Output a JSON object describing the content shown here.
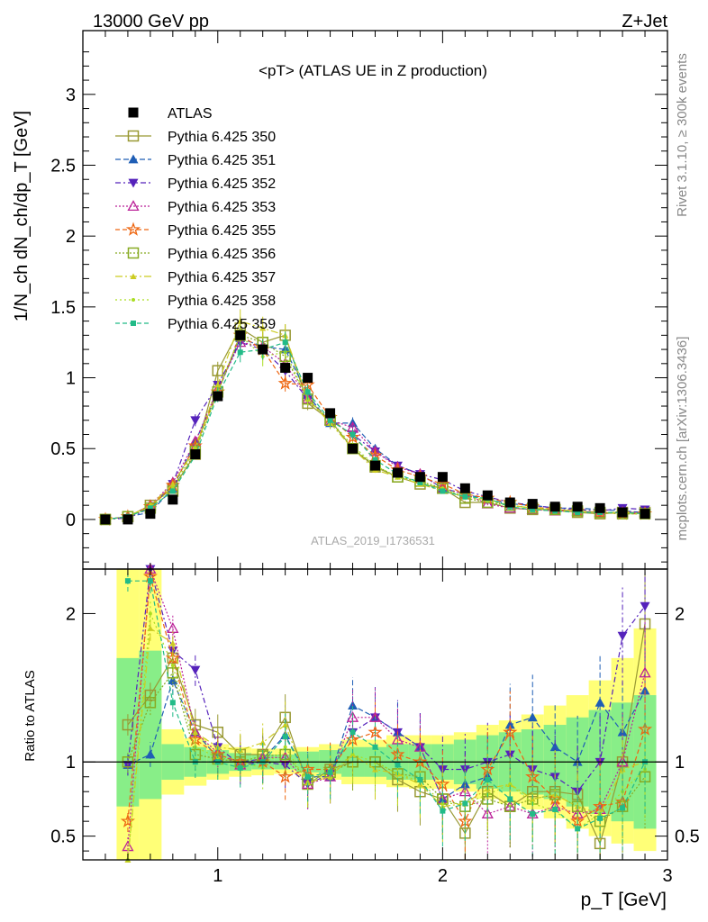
{
  "header": {
    "left": "13000 GeV pp",
    "right": "Z+Jet"
  },
  "side": {
    "rivet": "Rivet 3.1.10, ≥ 300k events",
    "site": "mcplots.cern.ch [arXiv:1306.3436]"
  },
  "chart_data": {
    "type": "scatter",
    "title": "<pT> (ATLAS UE in Z production)",
    "watermark": "ATLAS_2019_I1736531",
    "xlabel": "p_T [GeV]",
    "ylabel": "1/N_ch dN_ch/dp_T [GeV]",
    "ratio_ylabel": "Ratio to ATLAS",
    "xlim": [
      0.4,
      3.0
    ],
    "ylim": [
      -0.35,
      3.45
    ],
    "ratio_ylim": [
      0.34,
      2.3
    ],
    "xticks": [
      1,
      2,
      3
    ],
    "yticks": [
      0,
      0.5,
      1,
      1.5,
      2,
      2.5,
      3
    ],
    "ratio_yticks": [
      0.5,
      1,
      2
    ],
    "x": [
      0.5,
      0.6,
      0.7,
      0.8,
      0.9,
      1.0,
      1.1,
      1.2,
      1.3,
      1.4,
      1.5,
      1.6,
      1.7,
      1.8,
      1.9,
      2.0,
      2.1,
      2.2,
      2.3,
      2.4,
      2.5,
      2.6,
      2.7,
      2.8,
      2.9
    ],
    "data": {
      "name": "ATLAS",
      "values": [
        0.0,
        0.0,
        0.04,
        0.14,
        0.46,
        0.87,
        1.3,
        1.2,
        1.07,
        1.0,
        0.75,
        0.5,
        0.38,
        0.33,
        0.3,
        0.3,
        0.22,
        0.17,
        0.12,
        0.11,
        0.09,
        0.09,
        0.08,
        0.05,
        0.04
      ]
    },
    "band_inner": [
      null,
      0.7,
      0.75,
      0.88,
      0.9,
      0.92,
      0.94,
      0.95,
      0.95,
      0.93,
      0.92,
      0.9,
      0.9,
      0.88,
      0.88,
      0.88,
      0.85,
      0.82,
      0.8,
      0.78,
      0.75,
      0.7,
      0.65,
      0.6,
      0.55
    ],
    "band_inner_hi": [
      null,
      1.7,
      1.75,
      1.12,
      1.1,
      1.08,
      1.06,
      1.05,
      1.05,
      1.07,
      1.08,
      1.1,
      1.1,
      1.12,
      1.12,
      1.12,
      1.15,
      1.18,
      1.2,
      1.22,
      1.25,
      1.3,
      1.35,
      1.4,
      1.45
    ],
    "band_outer": [
      null,
      0.34,
      0.34,
      0.78,
      0.84,
      0.88,
      0.9,
      0.91,
      0.92,
      0.9,
      0.88,
      0.85,
      0.85,
      0.83,
      0.82,
      0.82,
      0.8,
      0.75,
      0.72,
      0.68,
      0.62,
      0.55,
      0.5,
      0.45,
      0.4
    ],
    "band_outer_hi": [
      null,
      2.3,
      2.3,
      1.22,
      1.16,
      1.12,
      1.1,
      1.09,
      1.09,
      1.1,
      1.12,
      1.15,
      1.15,
      1.18,
      1.18,
      1.18,
      1.2,
      1.25,
      1.28,
      1.32,
      1.38,
      1.45,
      1.55,
      1.7,
      1.9
    ],
    "series": [
      {
        "name": "Pythia 6.425 350",
        "color": "#999933",
        "dash": "",
        "marker": "square-open",
        "values": [
          0.0,
          0.02,
          0.1,
          0.22,
          0.46,
          1.05,
          1.35,
          1.25,
          1.3,
          0.82,
          0.7,
          0.5,
          0.37,
          0.3,
          0.25,
          0.22,
          0.12,
          0.12,
          0.08,
          0.07,
          0.07,
          0.05,
          0.04,
          0.05,
          0.05
        ]
      },
      {
        "name": "Pythia 6.425 351",
        "color": "#1f5eb5",
        "dash": "6,3",
        "marker": "triangle-up",
        "values": [
          0.0,
          0.02,
          0.05,
          0.22,
          0.55,
          0.9,
          1.28,
          1.22,
          1.2,
          0.88,
          0.68,
          0.68,
          0.5,
          0.38,
          0.32,
          0.22,
          0.18,
          0.14,
          0.11,
          0.1,
          0.08,
          0.08,
          0.07,
          0.06,
          0.05
        ]
      },
      {
        "name": "Pythia 6.425 352",
        "color": "#5522bb",
        "dash": "6,3,2,3",
        "marker": "triangle-down",
        "values": [
          0.0,
          0.01,
          0.08,
          0.25,
          0.7,
          0.95,
          1.25,
          1.2,
          1.05,
          0.85,
          0.7,
          0.6,
          0.48,
          0.38,
          0.32,
          0.28,
          0.2,
          0.16,
          0.12,
          0.1,
          0.08,
          0.07,
          0.06,
          0.08,
          0.07
        ]
      },
      {
        "name": "Pythia 6.425 353",
        "color": "#bb2299",
        "dash": "2,2",
        "marker": "triangle-open",
        "values": [
          0.0,
          0.02,
          0.1,
          0.26,
          0.55,
          0.92,
          1.25,
          1.22,
          1.1,
          0.85,
          0.7,
          0.65,
          0.48,
          0.37,
          0.32,
          0.22,
          0.18,
          0.11,
          0.08,
          0.07,
          0.06,
          0.06,
          0.05,
          0.05,
          0.05
        ]
      },
      {
        "name": "Pythia 6.425 355",
        "color": "#ee6611",
        "dash": "5,3",
        "marker": "star-open",
        "values": [
          0.0,
          0.02,
          0.09,
          0.24,
          0.52,
          0.9,
          1.3,
          1.2,
          0.96,
          0.95,
          0.72,
          0.58,
          0.45,
          0.35,
          0.3,
          0.25,
          0.18,
          0.15,
          0.12,
          0.09,
          0.07,
          0.06,
          0.05,
          0.04,
          0.04
        ]
      },
      {
        "name": "Pythia 6.425 356",
        "color": "#88aa22",
        "dash": "2,2",
        "marker": "square-open",
        "values": [
          0.0,
          0.02,
          0.08,
          0.2,
          0.48,
          0.9,
          1.3,
          1.25,
          1.15,
          0.85,
          0.7,
          0.5,
          0.38,
          0.3,
          0.27,
          0.22,
          0.15,
          0.12,
          0.1,
          0.08,
          0.07,
          0.06,
          0.05,
          0.04,
          0.04
        ]
      },
      {
        "name": "Pythia 6.425 357",
        "color": "#cccc22",
        "dash": "8,3,2,3",
        "marker": "triangle-small",
        "values": [
          0.0,
          0.02,
          0.1,
          0.25,
          0.5,
          0.95,
          1.4,
          1.35,
          1.3,
          0.85,
          0.68,
          0.5,
          0.35,
          0.3,
          0.25,
          0.2,
          0.16,
          0.14,
          0.1,
          0.08,
          0.07,
          0.06,
          0.05,
          0.05,
          0.04
        ]
      },
      {
        "name": "Pythia 6.425 358",
        "color": "#aadd22",
        "dash": "2,3",
        "marker": "dot",
        "values": [
          0.0,
          0.02,
          0.09,
          0.22,
          0.5,
          0.9,
          1.3,
          1.15,
          1.18,
          0.85,
          0.7,
          0.52,
          0.38,
          0.3,
          0.26,
          0.22,
          0.16,
          0.13,
          0.1,
          0.08,
          0.06,
          0.05,
          0.05,
          0.04,
          0.04
        ]
      },
      {
        "name": "Pythia 6.425 359",
        "color": "#22bb88",
        "dash": "5,3",
        "marker": "square-small",
        "values": [
          0.0,
          0.02,
          0.08,
          0.2,
          0.45,
          0.88,
          1.18,
          1.2,
          1.25,
          0.9,
          0.7,
          0.6,
          0.42,
          0.32,
          0.26,
          0.2,
          0.16,
          0.15,
          0.09,
          0.07,
          0.06,
          0.05,
          0.05,
          0.05,
          0.04
        ]
      }
    ],
    "ratio_series": [
      [
        null,
        1.25,
        1.45,
        1.7,
        1.25,
        1.2,
        1.05,
        1.05,
        1.3,
        0.85,
        0.95,
        1.0,
        1.0,
        0.88,
        0.8,
        0.75,
        0.52,
        0.8,
        0.7,
        0.8,
        0.8,
        0.78,
        0.45,
        1.0,
        1.93
      ],
      [
        null,
        0.98,
        1.05,
        1.55,
        1.2,
        1.03,
        1.0,
        1.02,
        1.18,
        0.9,
        0.9,
        1.38,
        1.3,
        1.2,
        1.1,
        0.75,
        0.85,
        0.9,
        1.25,
        1.3,
        1.1,
        1.0,
        1.4,
        1.2,
        1.48
      ],
      [
        null,
        0.98,
        2.3,
        1.75,
        1.62,
        1.1,
        0.98,
        1.0,
        0.98,
        0.85,
        0.92,
        1.2,
        1.3,
        1.2,
        1.1,
        0.95,
        0.95,
        1.0,
        1.05,
        0.95,
        0.9,
        0.8,
        1.0,
        1.85,
        2.05
      ],
      [
        null,
        0.43,
        2.3,
        1.9,
        1.2,
        1.06,
        0.98,
        1.03,
        1.03,
        0.85,
        0.9,
        1.3,
        1.3,
        1.15,
        1.1,
        0.75,
        0.8,
        0.65,
        0.7,
        0.65,
        0.7,
        0.65,
        0.68,
        1.0,
        1.6
      ],
      [
        null,
        0.6,
        2.25,
        1.7,
        1.15,
        1.05,
        1.0,
        1.0,
        0.9,
        0.95,
        0.95,
        1.15,
        1.2,
        1.05,
        1.0,
        0.85,
        0.6,
        0.95,
        1.2,
        0.9,
        0.75,
        0.6,
        0.7,
        0.73,
        1.22
      ],
      [
        null,
        1.0,
        1.4,
        1.6,
        1.05,
        1.02,
        1.0,
        1.04,
        1.05,
        0.88,
        0.93,
        1.0,
        1.0,
        0.92,
        0.9,
        0.75,
        0.7,
        0.75,
        0.7,
        0.75,
        0.78,
        0.7,
        0.6,
        0.7,
        0.9
      ],
      [
        null,
        0.34,
        1.9,
        1.8,
        1.2,
        1.1,
        1.08,
        1.13,
        1.25,
        0.86,
        0.9,
        1.05,
        0.95,
        0.92,
        0.85,
        0.7,
        0.72,
        0.82,
        0.85,
        0.75,
        0.78,
        0.7,
        0.65,
        0.95,
        1.0
      ],
      [
        null,
        0.34,
        2.0,
        1.65,
        1.1,
        1.03,
        1.0,
        0.96,
        1.1,
        0.86,
        0.93,
        1.05,
        1.0,
        0.92,
        0.87,
        0.72,
        0.72,
        0.78,
        0.85,
        0.72,
        0.67,
        0.55,
        0.65,
        0.8,
        0.95
      ],
      [
        null,
        2.22,
        2.22,
        1.4,
        1.0,
        1.0,
        0.96,
        1.0,
        1.17,
        0.9,
        0.93,
        1.2,
        1.1,
        0.98,
        0.88,
        0.67,
        0.72,
        0.88,
        0.75,
        0.65,
        0.68,
        0.55,
        0.62,
        0.69,
        1.0
      ]
    ]
  }
}
